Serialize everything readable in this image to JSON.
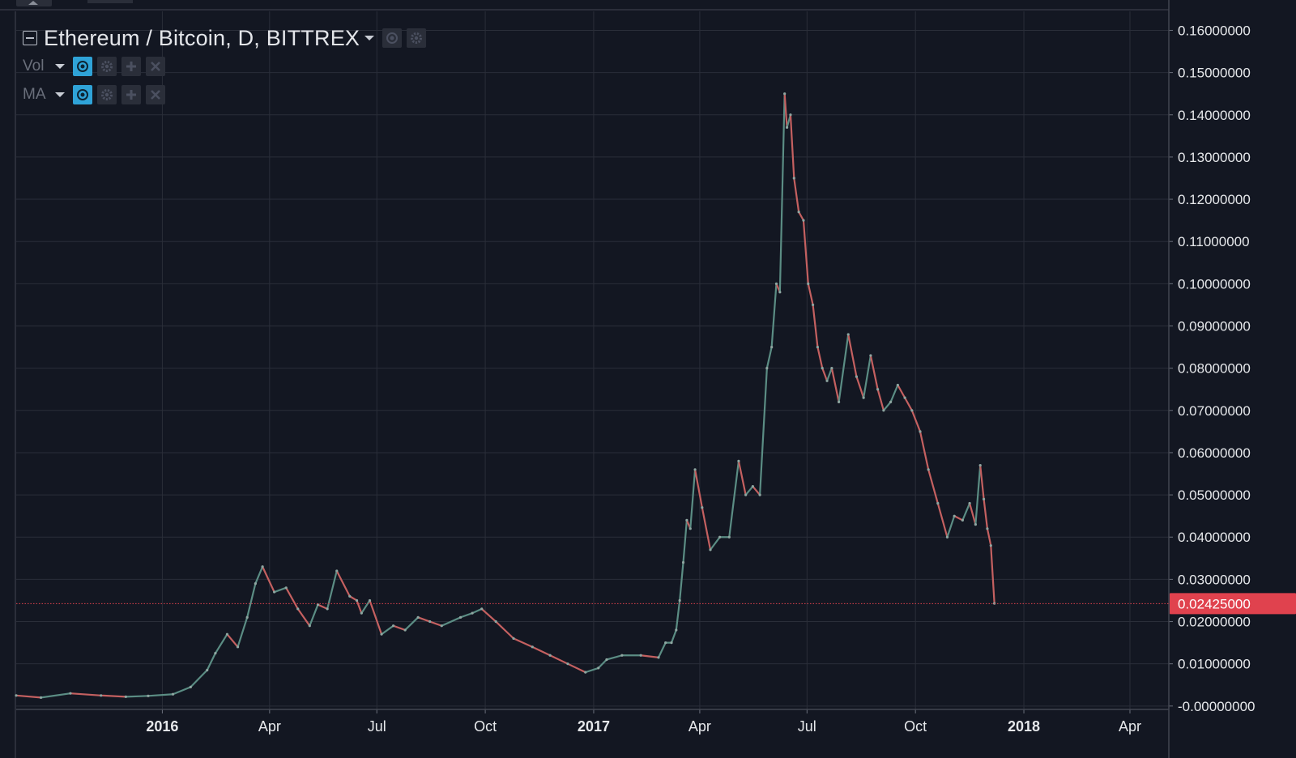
{
  "legend": {
    "title": "Ethereum / Bitcoin, D, BITTREX",
    "indicators": [
      {
        "label": "Vol"
      },
      {
        "label": "MA"
      }
    ]
  },
  "colors": {
    "background": "#131722",
    "grid": "#2a2e39",
    "axis_text": "#e6e8eb",
    "up_candle": "#5b8d84",
    "down_candle": "#c46060",
    "price_line": "#e0424e",
    "price_label_bg": "#e0424e",
    "eye_button": "#2fa3d8"
  },
  "chart_data": {
    "type": "line",
    "symbol": "Ethereum / Bitcoin",
    "interval": "D",
    "exchange": "BITTREX",
    "y_ticks": [
      "0.16000000",
      "0.15000000",
      "0.14000000",
      "0.13000000",
      "0.12000000",
      "0.11000000",
      "0.10000000",
      "0.09000000",
      "0.08000000",
      "0.07000000",
      "0.06000000",
      "0.05000000",
      "0.04000000",
      "0.03000000",
      "0.02000000",
      "0.01000000",
      "-0.00000000"
    ],
    "ylim": [
      -0.0008,
      0.1645
    ],
    "x_ticks": [
      {
        "label": "2016",
        "date": "2016-01-01",
        "bold": true
      },
      {
        "label": "Apr",
        "date": "2016-04-01",
        "bold": false
      },
      {
        "label": "Jul",
        "date": "2016-07-01",
        "bold": false
      },
      {
        "label": "Oct",
        "date": "2016-10-01",
        "bold": false
      },
      {
        "label": "2017",
        "date": "2017-01-01",
        "bold": true
      },
      {
        "label": "Apr",
        "date": "2017-04-01",
        "bold": false
      },
      {
        "label": "Jul",
        "date": "2017-07-01",
        "bold": false
      },
      {
        "label": "Oct",
        "date": "2017-10-01",
        "bold": false
      },
      {
        "label": "2018",
        "date": "2018-01-01",
        "bold": true
      },
      {
        "label": "Apr",
        "date": "2018-04-01",
        "bold": false
      }
    ],
    "xlim": [
      "2015-08-30",
      "2018-05-04"
    ],
    "grid": true,
    "last_price": "0.02425000",
    "last_price_value": 0.02425,
    "series": [
      {
        "x": [
          "2015-08-30",
          "2015-09-20",
          "2015-10-15",
          "2015-11-10",
          "2015-12-01",
          "2015-12-20",
          "2016-01-10",
          "2016-01-25",
          "2016-02-08",
          "2016-02-15",
          "2016-02-25",
          "2016-03-05",
          "2016-03-13",
          "2016-03-20",
          "2016-03-26",
          "2016-04-05",
          "2016-04-15",
          "2016-04-25",
          "2016-05-05",
          "2016-05-12",
          "2016-05-20",
          "2016-05-28",
          "2016-06-08",
          "2016-06-14",
          "2016-06-18",
          "2016-06-25",
          "2016-07-05",
          "2016-07-15",
          "2016-07-25",
          "2016-08-05",
          "2016-08-15",
          "2016-08-25",
          "2016-09-10",
          "2016-09-20",
          "2016-09-28",
          "2016-10-10",
          "2016-10-25",
          "2016-11-10",
          "2016-11-25",
          "2016-12-10",
          "2016-12-25",
          "2017-01-05",
          "2017-01-12",
          "2017-01-25",
          "2017-02-10",
          "2017-02-25",
          "2017-03-03",
          "2017-03-08",
          "2017-03-12",
          "2017-03-15",
          "2017-03-18",
          "2017-03-21",
          "2017-03-24",
          "2017-03-28",
          "2017-04-03",
          "2017-04-10",
          "2017-04-18",
          "2017-04-26",
          "2017-05-04",
          "2017-05-10",
          "2017-05-16",
          "2017-05-22",
          "2017-05-28",
          "2017-06-01",
          "2017-06-05",
          "2017-06-08",
          "2017-06-12",
          "2017-06-14",
          "2017-06-17",
          "2017-06-20",
          "2017-06-24",
          "2017-06-28",
          "2017-07-02",
          "2017-07-06",
          "2017-07-10",
          "2017-07-14",
          "2017-07-18",
          "2017-07-22",
          "2017-07-28",
          "2017-08-05",
          "2017-08-12",
          "2017-08-18",
          "2017-08-24",
          "2017-08-30",
          "2017-09-04",
          "2017-09-10",
          "2017-09-16",
          "2017-09-22",
          "2017-09-28",
          "2017-10-05",
          "2017-10-12",
          "2017-10-20",
          "2017-10-28",
          "2017-11-03",
          "2017-11-10",
          "2017-11-16",
          "2017-11-21",
          "2017-11-25",
          "2017-11-28",
          "2017-12-01",
          "2017-12-04",
          "2017-12-07"
        ],
        "values": [
          0.0025,
          0.002,
          0.003,
          0.0025,
          0.0022,
          0.0024,
          0.0028,
          0.0045,
          0.0085,
          0.0125,
          0.017,
          0.014,
          0.021,
          0.029,
          0.033,
          0.027,
          0.028,
          0.023,
          0.019,
          0.024,
          0.023,
          0.032,
          0.026,
          0.025,
          0.022,
          0.025,
          0.017,
          0.019,
          0.018,
          0.021,
          0.02,
          0.019,
          0.021,
          0.022,
          0.023,
          0.02,
          0.016,
          0.014,
          0.012,
          0.01,
          0.008,
          0.009,
          0.011,
          0.012,
          0.012,
          0.0115,
          0.015,
          0.015,
          0.018,
          0.025,
          0.034,
          0.044,
          0.042,
          0.056,
          0.047,
          0.037,
          0.04,
          0.04,
          0.058,
          0.05,
          0.052,
          0.05,
          0.08,
          0.085,
          0.1,
          0.098,
          0.145,
          0.137,
          0.14,
          0.125,
          0.117,
          0.115,
          0.1,
          0.095,
          0.085,
          0.08,
          0.077,
          0.08,
          0.072,
          0.088,
          0.078,
          0.073,
          0.083,
          0.075,
          0.07,
          0.072,
          0.076,
          0.073,
          0.07,
          0.065,
          0.056,
          0.048,
          0.04,
          0.045,
          0.044,
          0.048,
          0.043,
          0.057,
          0.049,
          0.042,
          0.038,
          0.0243
        ]
      }
    ]
  }
}
